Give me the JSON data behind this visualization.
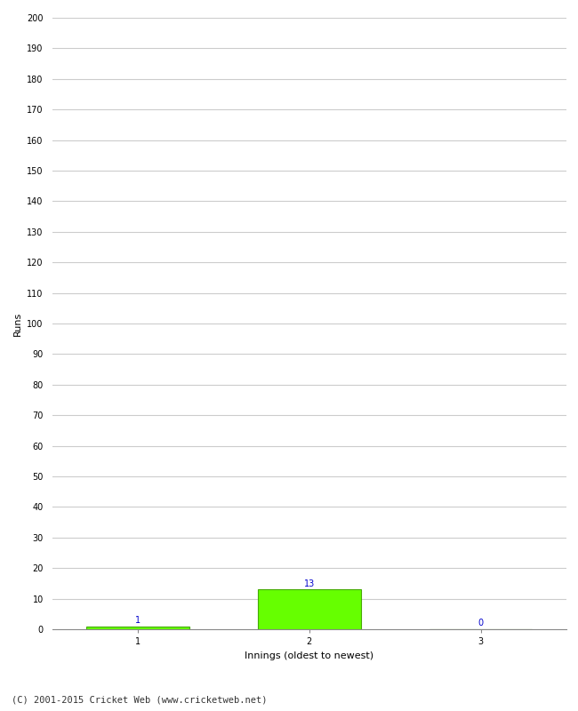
{
  "categories": [
    1,
    2,
    3
  ],
  "values": [
    1,
    13,
    0
  ],
  "bar_color": "#66ff00",
  "bar_edge_color": "#44aa00",
  "xlabel": "Innings (oldest to newest)",
  "ylabel": "Runs",
  "ylim": [
    0,
    200
  ],
  "yticks": [
    0,
    10,
    20,
    30,
    40,
    50,
    60,
    70,
    80,
    90,
    100,
    110,
    120,
    130,
    140,
    150,
    160,
    170,
    180,
    190,
    200
  ],
  "label_color": "#0000cc",
  "label_fontsize": 7,
  "axis_fontsize": 8,
  "tick_fontsize": 7,
  "xlabel_fontsize": 8,
  "footer_text": "(C) 2001-2015 Cricket Web (www.cricketweb.net)",
  "footer_fontsize": 7.5,
  "background_color": "#ffffff",
  "grid_color": "#cccccc",
  "bar_width": 0.6
}
